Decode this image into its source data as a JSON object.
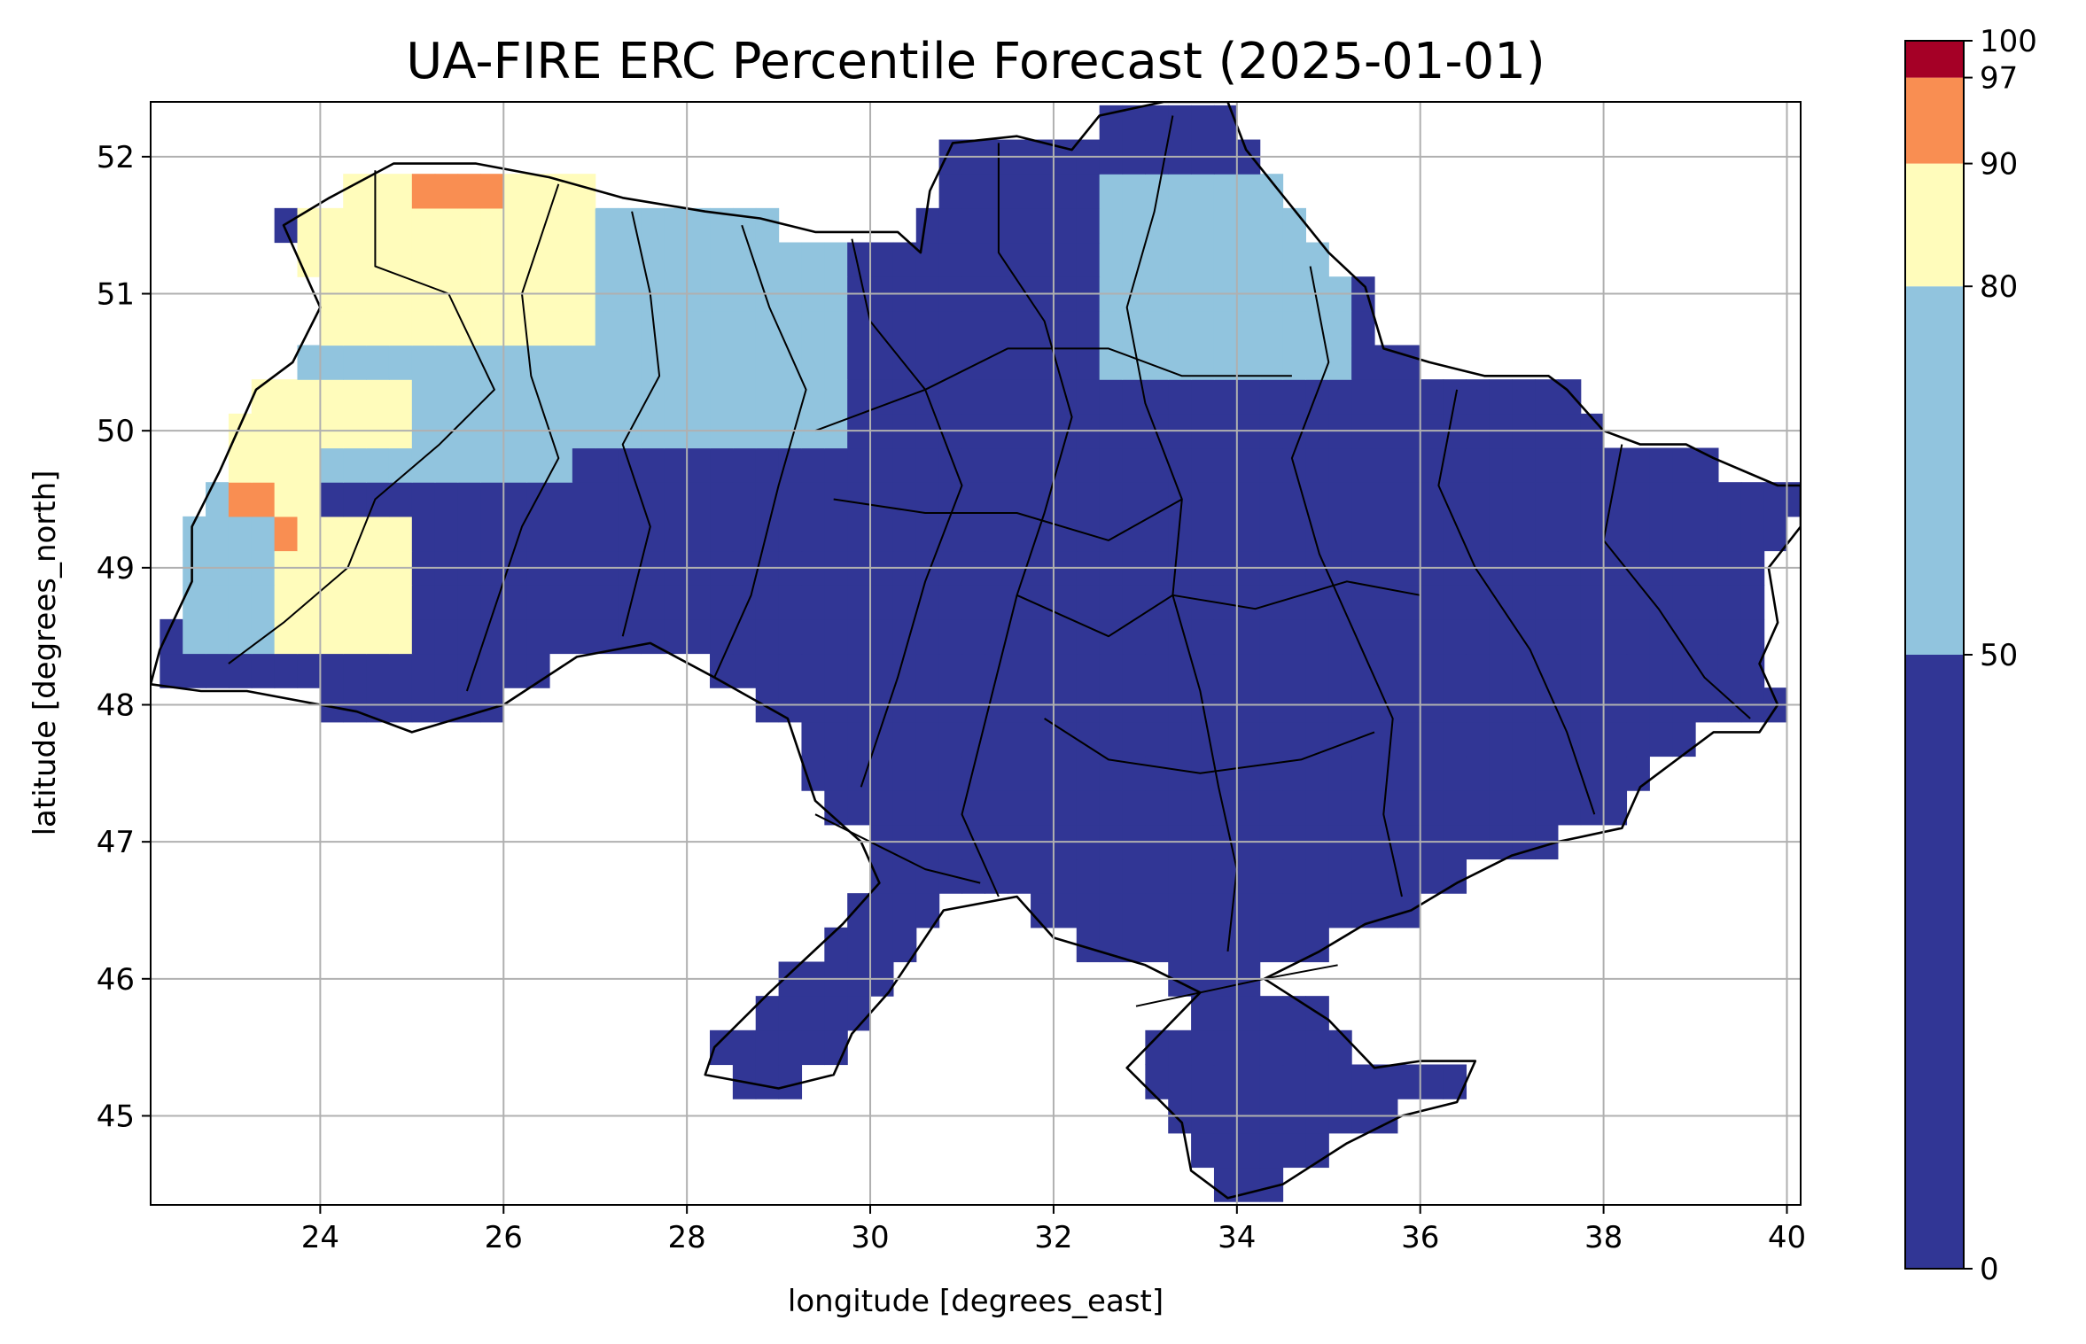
{
  "chart_data": {
    "type": "heatmap",
    "title": "UA-FIRE ERC Percentile Forecast (2025-01-01)",
    "xlabel": "longitude [degrees_east]",
    "ylabel": "latitude [degrees_north]",
    "xlim": [
      22.15,
      40.15
    ],
    "ylim": [
      44.35,
      52.4
    ],
    "x_ticks": [
      "24",
      "26",
      "28",
      "30",
      "32",
      "34",
      "36",
      "38",
      "40"
    ],
    "y_ticks": [
      "45",
      "46",
      "47",
      "48",
      "49",
      "50",
      "51",
      "52"
    ],
    "grid": true,
    "colorbar": {
      "bounds": [
        0,
        50,
        80,
        90,
        97,
        100
      ],
      "tick_labels": [
        "0",
        "50",
        "80",
        "90",
        "97",
        "100"
      ],
      "colors": [
        "#313695",
        "#91c4de",
        "#fffcbb",
        "#f98e52",
        "#a50026"
      ]
    },
    "cells_lat": [
      52.125,
      51.875,
      51.625,
      51.375,
      51.125,
      50.875,
      50.625,
      50.375,
      50.125,
      49.875,
      49.625,
      49.375,
      49.125,
      48.875,
      48.625,
      48.375,
      48.125,
      47.875,
      47.625,
      47.375,
      47.125,
      46.875,
      46.625,
      46.375,
      46.125,
      45.875,
      45.625,
      45.375,
      45.125,
      44.875,
      44.625
    ],
    "cells_lon_start": 22.25,
    "cells_lon_step": 0.25,
    "cells": [
      "....................................................................................................",
      "....................................................................................................",
      "....................................................................................................",
      "....................................................................................................",
      "....................................................................................................",
      "....................................................................................................",
      "....................................................................................................",
      "....................................................................................................",
      "....................................................................................................",
      "....................................................................................................",
      "....................................................................................................",
      "....................................................................................................",
      "....................................................................................................",
      "....................................................................................................",
      "....................................................................................................",
      "....................................................................................................",
      "....................................................................................................",
      "....................................................................................................",
      "....................................................................................................",
      "....................................................................................................",
      "....................................................................................................",
      "....................................................................................................",
      "....................................................................................................",
      "....................................................................................................",
      "....................................................................................................",
      "....................................................................................................",
      "....................................................................................................",
      "....................................................................................................",
      "....................................................................................................",
      "....................................................................................................",
      "...................................................................................................."
    ],
    "regions": [
      {
        "category": 0,
        "lon_range": [
          22.15,
          40.15
        ],
        "lat_range": [
          44.35,
          52.4
        ],
        "note_class": "base-dark"
      }
    ]
  }
}
